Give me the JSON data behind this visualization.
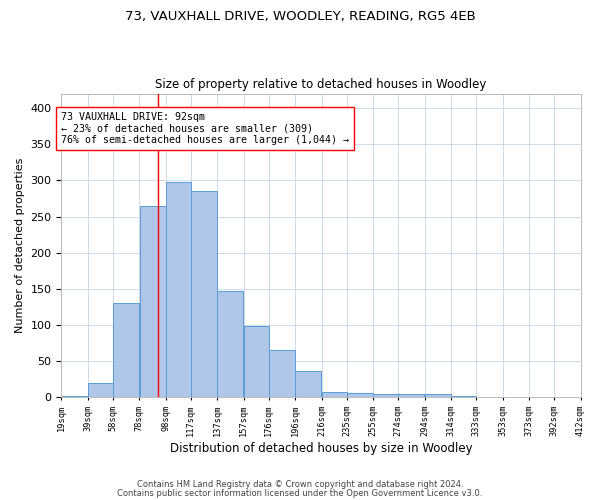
{
  "title_line1": "73, VAUXHALL DRIVE, WOODLEY, READING, RG5 4EB",
  "title_line2": "Size of property relative to detached houses in Woodley",
  "xlabel": "Distribution of detached houses by size in Woodley",
  "ylabel": "Number of detached properties",
  "bar_left_edges": [
    19,
    39,
    58,
    78,
    98,
    117,
    137,
    157,
    176,
    196,
    216,
    235,
    255,
    274,
    294,
    314,
    333,
    353,
    373,
    392
  ],
  "bar_widths": [
    20,
    19,
    20,
    20,
    19,
    20,
    20,
    19,
    20,
    20,
    19,
    20,
    19,
    20,
    20,
    19,
    20,
    20,
    19,
    20
  ],
  "bar_heights": [
    2,
    20,
    130,
    265,
    298,
    285,
    147,
    98,
    65,
    37,
    8,
    6,
    4,
    4,
    4,
    2,
    0,
    0,
    0,
    1
  ],
  "tick_labels": [
    "19sqm",
    "39sqm",
    "58sqm",
    "78sqm",
    "98sqm",
    "117sqm",
    "137sqm",
    "157sqm",
    "176sqm",
    "196sqm",
    "216sqm",
    "235sqm",
    "255sqm",
    "274sqm",
    "294sqm",
    "314sqm",
    "333sqm",
    "353sqm",
    "373sqm",
    "392sqm",
    "412sqm"
  ],
  "bar_color": "#aec6e8",
  "bar_edge_color": "#5b9bd5",
  "property_line_x": 92,
  "annotation_line1": "73 VAUXHALL DRIVE: 92sqm",
  "annotation_line2": "← 23% of detached houses are smaller (309)",
  "annotation_line3": "76% of semi-detached houses are larger (1,044) →",
  "ylim": [
    0,
    420
  ],
  "yticks": [
    0,
    50,
    100,
    150,
    200,
    250,
    300,
    350,
    400
  ],
  "footer_line1": "Contains HM Land Registry data © Crown copyright and database right 2024.",
  "footer_line2": "Contains public sector information licensed under the Open Government Licence v3.0.",
  "bg_color": "#ffffff",
  "grid_color": "#c8d4e8"
}
